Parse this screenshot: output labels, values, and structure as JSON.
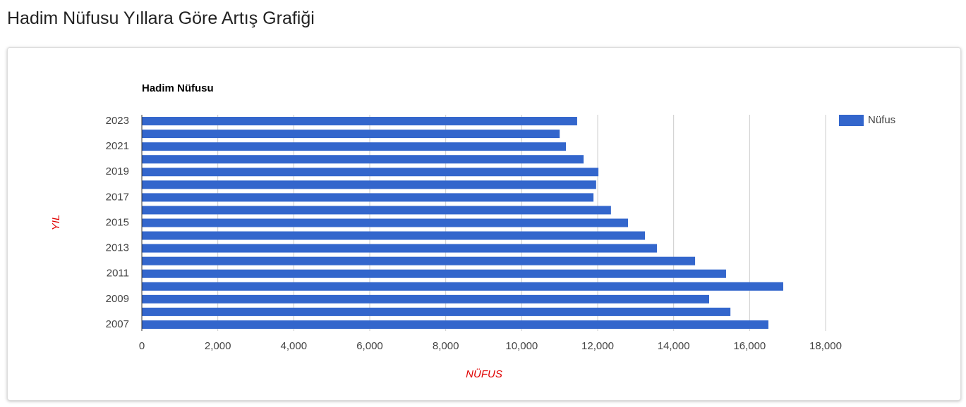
{
  "page_title": "Hadim Nüfusu Yıllara Göre Artış Grafiği",
  "chart_data": {
    "type": "hbar",
    "title": "Hadim Nüfusu",
    "x_label": "NÜFUS",
    "y_label": "YIL",
    "categories": [
      "2023",
      null,
      "2021",
      null,
      "2019",
      null,
      "2017",
      null,
      "2015",
      null,
      "2013",
      null,
      "2011",
      null,
      "2009",
      null,
      "2007"
    ],
    "series": [
      {
        "name": "Nüfus",
        "color": "#3366cc",
        "values": [
          11460,
          11000,
          11165,
          11630,
          12020,
          11960,
          11890,
          12350,
          12800,
          13245,
          13560,
          14565,
          15380,
          16885,
          14935,
          15495,
          16495
        ]
      }
    ],
    "xlim": [
      0,
      18000
    ],
    "xticks": [
      0,
      {
        "value": 2000,
        "label": "2,000"
      },
      {
        "value": 4000,
        "label": "4,000"
      },
      {
        "value": 6000,
        "label": "6,000"
      },
      {
        "value": 8000,
        "label": "8,000"
      },
      {
        "value": 10000,
        "label": "10,000"
      },
      {
        "value": 12000,
        "label": "12,000"
      },
      {
        "value": 14000,
        "label": "14,000"
      },
      {
        "value": 16000,
        "label": "16,000"
      },
      {
        "value": 18000,
        "label": "18,000"
      }
    ],
    "grid": true,
    "legend": "right"
  }
}
